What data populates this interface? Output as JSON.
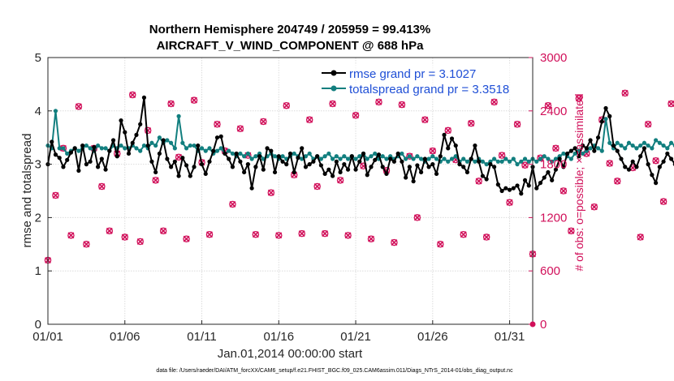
{
  "chart_data": {
    "type": "line",
    "title": "Northern Hemisphere 204749 / 205959 = 99.413%",
    "subtitle": "AIRCRAFT_V_WIND_COMPONENT @ 688 hPa",
    "xlabel": "Jan.01,2014 00:00:00 start",
    "ylabel": "rmse and totalspread",
    "ylabel_right": "# of obs: o=possible; ×=assimilated",
    "xlim": [
      0,
      31.5
    ],
    "ylim": [
      0,
      5
    ],
    "ylim_right": [
      0,
      3000
    ],
    "x_ticks": [
      0,
      5,
      10,
      15,
      20,
      25,
      30
    ],
    "x_tick_labels": [
      "01/01",
      "01/06",
      "01/11",
      "01/16",
      "01/21",
      "01/26",
      "01/31"
    ],
    "y_tick_labels": [
      "0",
      "1",
      "2",
      "3",
      "4",
      "5"
    ],
    "y_right_tick_labels": [
      "0",
      "600",
      "1200",
      "1800",
      "2400",
      "3000"
    ],
    "footnote": "data file: /Users/raeder/DAI/ATM_forcXX/CAM6_setup/f.e21.FHIST_BGC.f09_025.CAM6assim.011/Diags_NTrS_2014-01/obs_diag_output.nc",
    "series": [
      {
        "name": "rmse",
        "legend": "rmse grand pr = 3.1027",
        "color": "#000000",
        "step": 0.25,
        "values": [
          3.0,
          3.42,
          3.18,
          3.12,
          2.95,
          3.08,
          3.22,
          3.3,
          2.88,
          3.35,
          3.0,
          3.05,
          3.32,
          2.95,
          3.1,
          2.9,
          3.25,
          3.45,
          3.15,
          3.82,
          3.6,
          3.2,
          3.4,
          3.55,
          3.75,
          4.25,
          3.35,
          3.05,
          2.85,
          3.2,
          3.45,
          3.1,
          2.95,
          3.05,
          2.78,
          3.12,
          2.98,
          2.78,
          2.95,
          3.35,
          3.0,
          2.82,
          3.05,
          3.25,
          3.5,
          3.52,
          3.2,
          3.1,
          2.95,
          3.2,
          3.05,
          2.85,
          3.0,
          2.55,
          2.95,
          3.15,
          2.9,
          3.3,
          3.25,
          2.85,
          3.15,
          3.05,
          3.0,
          3.2,
          2.85,
          3.12,
          3.3,
          2.95,
          3.0,
          3.05,
          3.15,
          2.98,
          2.82,
          2.9,
          2.78,
          3.05,
          2.85,
          3.0,
          2.9,
          3.15,
          2.9,
          3.05,
          3.2,
          2.8,
          2.95,
          3.08,
          3.18,
          2.95,
          2.82,
          3.1,
          3.05,
          3.2,
          3.05,
          2.75,
          2.95,
          2.68,
          2.98,
          2.85,
          3.1,
          2.95,
          3.0,
          2.82,
          3.15,
          3.55,
          3.3,
          3.48,
          3.35,
          3.0,
          2.95,
          2.85,
          3.1,
          3.35,
          3.05,
          2.78,
          2.72,
          3.0,
          2.95,
          2.62,
          2.5,
          2.55,
          2.52,
          2.55,
          2.6,
          2.45,
          2.7,
          2.6,
          2.95,
          2.55,
          2.65,
          2.75,
          2.85,
          2.7,
          2.9,
          3.1,
          2.95,
          3.2,
          3.25,
          3.3,
          3.15,
          3.35,
          3.3,
          3.45,
          3.25,
          3.5,
          3.8,
          4.05,
          3.9,
          3.35,
          3.25,
          3.1,
          2.95,
          2.9,
          3.05,
          2.95,
          3.15,
          3.3,
          3.0,
          2.8,
          2.65,
          2.95,
          3.05,
          3.2,
          3.1,
          3.0,
          3.15,
          2.95,
          3.1,
          3.18,
          3.25,
          3.6,
          3.35,
          3.25,
          3.4,
          3.6,
          3.65
        ]
      },
      {
        "name": "totalspread",
        "legend": "totalspread grand pr = 3.3518",
        "color": "#127f7f",
        "step": 0.25,
        "values": [
          3.35,
          3.3,
          4.0,
          3.3,
          3.3,
          3.2,
          3.25,
          3.3,
          3.25,
          3.3,
          3.35,
          3.3,
          3.25,
          3.35,
          3.3,
          3.3,
          3.25,
          3.35,
          3.3,
          3.35,
          3.3,
          3.3,
          3.35,
          3.3,
          3.25,
          3.35,
          3.3,
          3.4,
          3.35,
          3.5,
          3.4,
          3.45,
          3.4,
          3.3,
          3.9,
          3.4,
          3.3,
          3.35,
          3.35,
          3.25,
          3.3,
          3.25,
          3.3,
          3.2,
          3.25,
          3.3,
          3.2,
          3.25,
          3.2,
          3.15,
          3.2,
          3.15,
          3.2,
          3.1,
          3.15,
          3.2,
          3.1,
          3.15,
          3.2,
          3.15,
          3.1,
          3.15,
          3.1,
          3.15,
          3.2,
          3.15,
          3.1,
          3.15,
          3.2,
          3.1,
          3.15,
          3.1,
          3.15,
          3.2,
          3.1,
          3.15,
          3.1,
          3.15,
          3.1,
          3.15,
          3.1,
          3.15,
          3.2,
          3.1,
          3.15,
          3.2,
          3.1,
          3.15,
          3.1,
          3.15,
          3.1,
          3.15,
          3.2,
          3.1,
          3.15,
          3.1,
          3.15,
          3.1,
          3.05,
          3.1,
          3.15,
          3.1,
          3.05,
          3.1,
          3.05,
          3.1,
          3.15,
          3.05,
          3.1,
          3.05,
          3.1,
          3.05,
          3.1,
          3.05,
          3.0,
          3.05,
          3.1,
          3.05,
          3.05,
          3.1,
          3.05,
          3.1,
          3.0,
          3.05,
          3.1,
          3.05,
          3.1,
          3.05,
          3.1,
          3.15,
          3.1,
          3.05,
          3.1,
          3.15,
          3.2,
          3.15,
          3.1,
          3.2,
          3.25,
          3.2,
          3.25,
          3.3,
          3.35,
          3.3,
          3.25,
          3.85,
          3.4,
          3.3,
          3.4,
          3.35,
          3.3,
          3.4,
          3.35,
          3.3,
          3.35,
          3.4,
          3.35,
          3.3,
          3.45,
          3.4,
          3.35,
          3.3,
          3.4,
          3.35,
          3.3,
          3.25,
          3.3,
          3.25,
          3.3,
          3.35,
          3.4,
          3.3
        ]
      },
      {
        "name": "obs_possible",
        "marker": "o",
        "color": "#d1105a",
        "step": 0.5,
        "values": [
          720,
          1450,
          1980,
          1000,
          2450,
          900,
          1980,
          1550,
          1050,
          1920,
          980,
          2580,
          930,
          2180,
          1620,
          1050,
          2480,
          1880,
          960,
          2520,
          1820,
          1010,
          2250,
          1950,
          1350,
          2200,
          1900,
          1010,
          2280,
          1480,
          1000,
          2460,
          1680,
          1020,
          2300,
          1550,
          1020,
          2480,
          1620,
          1000,
          2350,
          1780,
          960,
          2500,
          1730,
          920,
          2470,
          1890,
          1200,
          2300,
          1950,
          900,
          2180,
          1850,
          1010,
          2260,
          1610,
          980,
          2500,
          1900,
          1370,
          2250,
          1790,
          790,
          1870,
          2460,
          1980,
          1500,
          1050,
          2540,
          1920,
          1320,
          2300,
          1810,
          1610,
          2600,
          1760,
          980,
          2250,
          1840,
          1380,
          2480,
          1680,
          930,
          2280,
          1640,
          1000,
          2020,
          1560,
          910,
          2020
        ]
      },
      {
        "name": "obs_assimilated",
        "marker": "x",
        "color": "#d1105a",
        "step": 0.5,
        "values": [
          720,
          1450,
          1980,
          1000,
          2450,
          900,
          1980,
          1550,
          1050,
          1920,
          980,
          2580,
          930,
          2180,
          1620,
          1050,
          2480,
          1880,
          960,
          2520,
          1820,
          1010,
          2250,
          1950,
          1350,
          2200,
          1900,
          1010,
          2280,
          1480,
          1000,
          2460,
          1680,
          1020,
          2300,
          1550,
          1020,
          2480,
          1620,
          1000,
          2350,
          1780,
          960,
          2500,
          1730,
          920,
          2470,
          1890,
          1200,
          2300,
          1950,
          900,
          2180,
          1850,
          1010,
          2260,
          1610,
          980,
          2500,
          1900,
          1370,
          2250,
          1790,
          790,
          1870,
          2460,
          1980,
          1500,
          1050,
          2540,
          1920,
          1320,
          2300,
          1810,
          1610,
          2600,
          1760,
          980,
          2250,
          1840,
          1380,
          2480,
          1680,
          930,
          2280,
          1640,
          1000,
          2020,
          1560,
          910,
          2020
        ]
      }
    ]
  }
}
